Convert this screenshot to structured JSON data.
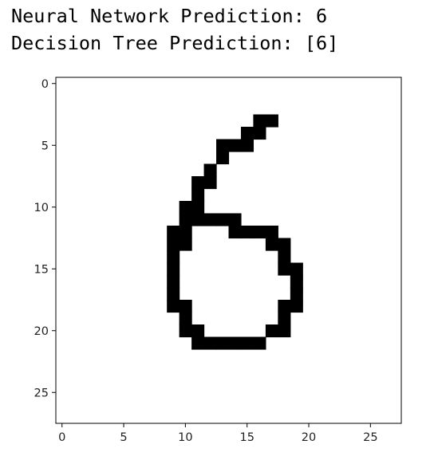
{
  "output_lines": [
    "Neural Network Prediction: 6",
    "Decision Tree Prediction: [6]"
  ],
  "chart_data": {
    "type": "heatmap",
    "colormap": "gray_r",
    "image_size": [
      28,
      28
    ],
    "xlim": [
      0,
      27
    ],
    "ylim": [
      27,
      0
    ],
    "x_ticks": [
      "0",
      "5",
      "10",
      "15",
      "20",
      "25"
    ],
    "y_ticks": [
      "0",
      "5",
      "10",
      "15",
      "20",
      "25"
    ],
    "ink_color": "#000000",
    "background_color": "#ffffff",
    "filled_pixels_by_row": [
      {
        "row": 3,
        "cols": [
          16,
          17
        ]
      },
      {
        "row": 4,
        "cols": [
          15,
          16
        ]
      },
      {
        "row": 5,
        "cols": [
          13,
          14,
          15
        ]
      },
      {
        "row": 6,
        "cols": [
          13
        ]
      },
      {
        "row": 7,
        "cols": [
          12
        ]
      },
      {
        "row": 8,
        "cols": [
          11,
          12
        ]
      },
      {
        "row": 9,
        "cols": [
          11
        ]
      },
      {
        "row": 10,
        "cols": [
          10,
          11
        ]
      },
      {
        "row": 11,
        "cols": [
          10,
          11,
          12,
          13,
          14
        ]
      },
      {
        "row": 12,
        "cols": [
          9,
          10,
          14,
          15,
          16,
          17
        ]
      },
      {
        "row": 13,
        "cols": [
          9,
          10,
          17,
          18
        ]
      },
      {
        "row": 14,
        "cols": [
          9,
          18
        ]
      },
      {
        "row": 15,
        "cols": [
          9,
          18,
          19
        ]
      },
      {
        "row": 16,
        "cols": [
          9,
          19
        ]
      },
      {
        "row": 17,
        "cols": [
          9,
          19
        ]
      },
      {
        "row": 18,
        "cols": [
          9,
          10,
          18,
          19
        ]
      },
      {
        "row": 19,
        "cols": [
          10,
          18
        ]
      },
      {
        "row": 20,
        "cols": [
          10,
          11,
          17,
          18
        ]
      },
      {
        "row": 21,
        "cols": [
          11,
          12,
          13,
          14,
          15,
          16
        ]
      }
    ]
  }
}
